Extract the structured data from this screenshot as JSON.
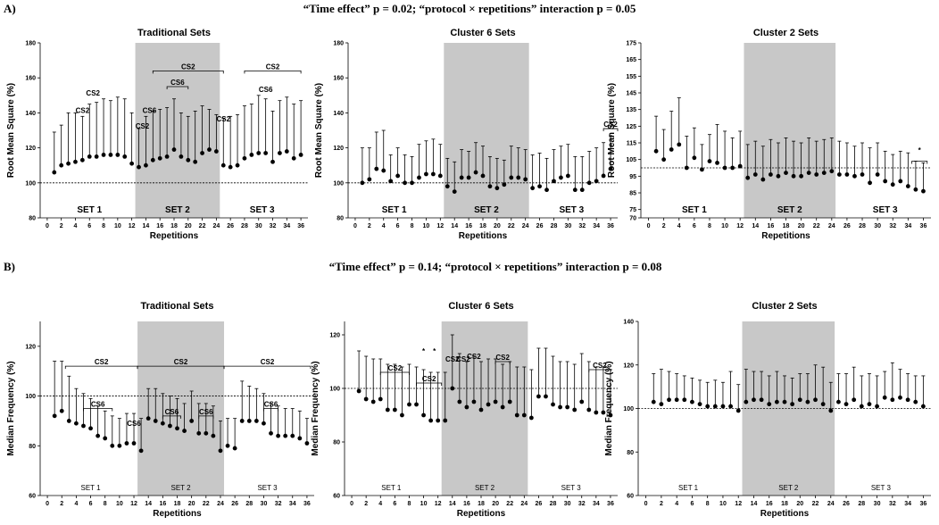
{
  "rows": [
    {
      "label": "A)",
      "header": "“Time effect” p = 0.02; “protocol × repetitions” interaction p = 0.05"
    },
    {
      "label": "B)",
      "header": "“Time effect” p = 0.14; “protocol × repetitions” interaction p = 0.08"
    }
  ],
  "chart_data": [
    {
      "type": "scatter",
      "title": "Traditional Sets",
      "xlabel": "Repetitions",
      "ylabel": "Root Mean Square (%)",
      "xlim": [
        -1,
        37
      ],
      "ylim": [
        80,
        180
      ],
      "xticks": [
        0,
        2,
        4,
        6,
        8,
        10,
        12,
        14,
        16,
        18,
        20,
        22,
        24,
        26,
        28,
        30,
        32,
        34,
        36
      ],
      "yticks": [
        80,
        100,
        120,
        140,
        160,
        180
      ],
      "reference_line": 100,
      "shaded": [
        12.5,
        24.5
      ],
      "set_labels": [
        {
          "text": "SET 1",
          "x": 6
        },
        {
          "text": "SET 2",
          "x": 18.5
        },
        {
          "text": "SET 3",
          "x": 30.5
        }
      ],
      "x": [
        1,
        2,
        3,
        4,
        5,
        6,
        7,
        8,
        9,
        10,
        11,
        12,
        13,
        14,
        15,
        16,
        17,
        18,
        19,
        20,
        21,
        22,
        23,
        24,
        25,
        26,
        27,
        28,
        29,
        30,
        31,
        32,
        33,
        34,
        35,
        36
      ],
      "mean": [
        106,
        110,
        111,
        112,
        113,
        115,
        115,
        116,
        116,
        116,
        115,
        111,
        109,
        110,
        113,
        114,
        115,
        119,
        115,
        113,
        112,
        117,
        119,
        118,
        110,
        109,
        110,
        114,
        116,
        117,
        117,
        112,
        117,
        118,
        114,
        116
      ],
      "upper": [
        129,
        133,
        140,
        140,
        138,
        145,
        146,
        148,
        147,
        149,
        148,
        140,
        131,
        138,
        141,
        142,
        143,
        148,
        140,
        138,
        141,
        144,
        142,
        139,
        137,
        138,
        139,
        144,
        145,
        150,
        148,
        141,
        147,
        149,
        145,
        147
      ],
      "annotations": [
        {
          "text": "CS2",
          "x": 5,
          "y": 140
        },
        {
          "text": "CS2",
          "x": 6.5,
          "y": 150
        },
        {
          "text": "CS2",
          "x": 13.5,
          "y": 131
        },
        {
          "text": "CS6",
          "x": 14.5,
          "y": 140
        },
        {
          "text": "CS2",
          "x": 25,
          "y": 135
        },
        {
          "text": "CS6",
          "x": 31,
          "y": 152
        }
      ],
      "brackets": [
        {
          "text": "CS2",
          "x1": 15,
          "x2": 25,
          "y": 164
        },
        {
          "text": "CS6",
          "x1": 17,
          "x2": 20,
          "y": 155
        },
        {
          "text": "CS2",
          "x1": 28,
          "x2": 36,
          "y": 164
        }
      ]
    },
    {
      "type": "scatter",
      "title": "Cluster 6 Sets",
      "xlabel": "Repetitions",
      "ylabel": "Root Mean Square  (%)",
      "xlim": [
        -1,
        37
      ],
      "ylim": [
        80,
        180
      ],
      "xticks": [
        0,
        2,
        4,
        6,
        8,
        10,
        12,
        14,
        16,
        18,
        20,
        22,
        24,
        26,
        28,
        30,
        32,
        34,
        36
      ],
      "yticks": [
        80,
        100,
        120,
        140,
        160,
        180
      ],
      "reference_line": 100,
      "shaded": [
        12.5,
        24.5
      ],
      "set_labels": [
        {
          "text": "SET 1",
          "x": 5.5
        },
        {
          "text": "SET 2",
          "x": 18.5
        },
        {
          "text": "SET 3",
          "x": 30.5
        }
      ],
      "x": [
        1,
        2,
        3,
        4,
        5,
        6,
        7,
        8,
        9,
        10,
        11,
        12,
        13,
        14,
        15,
        16,
        17,
        18,
        19,
        20,
        21,
        22,
        23,
        24,
        25,
        26,
        27,
        28,
        29,
        30,
        31,
        32,
        33,
        34,
        35,
        36
      ],
      "mean": [
        100,
        102,
        108,
        107,
        101,
        104,
        100,
        100,
        103,
        105,
        105,
        104,
        98,
        95,
        103,
        103,
        106,
        104,
        98,
        97,
        99,
        103,
        103,
        102,
        97,
        98,
        96,
        101,
        103,
        104,
        96,
        96,
        100,
        101,
        104,
        108
      ],
      "upper": [
        120,
        120,
        129,
        130,
        116,
        120,
        116,
        115,
        122,
        124,
        125,
        122,
        114,
        112,
        119,
        118,
        123,
        121,
        115,
        114,
        113,
        121,
        120,
        119,
        116,
        117,
        114,
        119,
        121,
        122,
        115,
        115,
        118,
        120,
        123,
        127
      ],
      "annotations": [],
      "brackets": [
        {
          "text": "CS2",
          "x1": 35,
          "x2": 37,
          "y": 131
        }
      ]
    },
    {
      "type": "scatter",
      "title": "Cluster 2 Sets",
      "xlabel": "Repetitions",
      "ylabel": "Root Mean Square  (%)",
      "xlim": [
        -1,
        37
      ],
      "ylim": [
        70,
        175
      ],
      "xticks": [
        0,
        2,
        4,
        6,
        8,
        10,
        12,
        14,
        16,
        18,
        20,
        22,
        24,
        26,
        28,
        30,
        32,
        34,
        36
      ],
      "yticks": [
        70,
        75,
        85,
        95,
        105,
        115,
        125,
        135,
        145,
        155,
        165,
        175
      ],
      "reference_line": 100,
      "shaded": [
        12.5,
        24.5
      ],
      "set_labels": [
        {
          "text": "SET 1",
          "x": 6
        },
        {
          "text": "SET 2",
          "x": 18.5
        },
        {
          "text": "SET 3",
          "x": 31
        }
      ],
      "x": [
        1,
        2,
        3,
        4,
        5,
        6,
        7,
        8,
        9,
        10,
        11,
        12,
        13,
        14,
        15,
        16,
        17,
        18,
        19,
        20,
        21,
        22,
        23,
        24,
        25,
        26,
        27,
        28,
        29,
        30,
        31,
        32,
        33,
        34,
        35,
        36
      ],
      "mean": [
        110,
        105,
        111,
        114,
        100,
        106,
        99,
        104,
        103,
        100,
        100,
        101,
        94,
        96,
        93,
        96,
        95,
        97,
        95,
        95,
        97,
        96,
        97,
        98,
        96,
        96,
        95,
        96,
        91,
        96,
        92,
        90,
        92,
        89,
        87,
        86
      ],
      "upper": [
        131,
        123,
        134,
        142,
        119,
        124,
        114,
        120,
        126,
        122,
        118,
        122,
        114,
        116,
        113,
        117,
        115,
        118,
        116,
        115,
        118,
        116,
        117,
        118,
        116,
        115,
        113,
        115,
        112,
        115,
        110,
        108,
        110,
        109,
        104,
        103
      ],
      "annotations": [
        {
          "text": "*",
          "x": 35.5,
          "y": 109
        }
      ],
      "brackets": [
        {
          "text": "",
          "x1": 34.5,
          "x2": 36.5,
          "y": 104
        }
      ]
    },
    {
      "type": "scatter",
      "title": "Traditional Sets",
      "xlabel": "Repetitions",
      "ylabel": "Median Frequency  (%)",
      "xlim": [
        -1,
        37
      ],
      "ylim": [
        60,
        130
      ],
      "xticks": [
        0,
        2,
        4,
        6,
        8,
        10,
        12,
        14,
        16,
        18,
        20,
        22,
        24,
        26,
        28,
        30,
        32,
        34,
        36
      ],
      "yticks": [
        60,
        80,
        100,
        120
      ],
      "reference_line": 100,
      "shaded": [
        12.5,
        24.5
      ],
      "set_labels": [
        {
          "text": "SET 1",
          "x": 6
        },
        {
          "text": "SET 2",
          "x": 18.5
        },
        {
          "text": "SET 3",
          "x": 30.5
        }
      ],
      "x": [
        1,
        2,
        3,
        4,
        5,
        6,
        7,
        8,
        9,
        10,
        11,
        12,
        13,
        14,
        15,
        16,
        17,
        18,
        19,
        20,
        21,
        22,
        23,
        24,
        25,
        26,
        27,
        28,
        29,
        30,
        31,
        32,
        33,
        34,
        35,
        36
      ],
      "mean": [
        92,
        94,
        90,
        89,
        88,
        87,
        84,
        83,
        80,
        80,
        81,
        81,
        78,
        91,
        90,
        89,
        88,
        87,
        86,
        90,
        85,
        85,
        84,
        78,
        80,
        79,
        90,
        90,
        90,
        89,
        85,
        84,
        84,
        84,
        83,
        81
      ],
      "upper": [
        114,
        114,
        108,
        103,
        101,
        99,
        96,
        94,
        92,
        91,
        93,
        93,
        91,
        103,
        103,
        101,
        100,
        99,
        97,
        102,
        97,
        97,
        96,
        90,
        91,
        91,
        106,
        104,
        103,
        101,
        97,
        96,
        95,
        95,
        94,
        91
      ],
      "annotations": [
        {
          "text": "CS6",
          "x": 12,
          "y": 88
        }
      ],
      "brackets": [
        {
          "text": "CS2",
          "x1": 2.5,
          "x2": 12.5,
          "y": 112
        },
        {
          "text": "CS6",
          "x1": 5,
          "x2": 9,
          "y": 95
        },
        {
          "text": "CS2",
          "x1": 12.5,
          "x2": 24.5,
          "y": 112
        },
        {
          "text": "CS6",
          "x1": 16,
          "x2": 18.5,
          "y": 92
        },
        {
          "text": "CS6",
          "x1": 21,
          "x2": 23,
          "y": 92
        },
        {
          "text": "CS2",
          "x1": 24.5,
          "x2": 36.5,
          "y": 112
        },
        {
          "text": "CS6",
          "x1": 30,
          "x2": 32,
          "y": 95
        }
      ]
    },
    {
      "type": "scatter",
      "title": "Cluster 6 Sets",
      "xlabel": "Repetitions",
      "ylabel": "Median Frequency  (%)",
      "xlim": [
        -1,
        37
      ],
      "ylim": [
        60,
        125
      ],
      "xticks": [
        0,
        2,
        4,
        6,
        8,
        10,
        12,
        14,
        16,
        18,
        20,
        22,
        24,
        26,
        28,
        30,
        32,
        34,
        36
      ],
      "yticks": [
        60,
        80,
        100,
        120
      ],
      "reference_line": 100,
      "shaded": [
        12.5,
        24.5
      ],
      "set_labels": [
        {
          "text": "SET 1",
          "x": 5.5
        },
        {
          "text": "SET 2",
          "x": 18.5
        },
        {
          "text": "SET 3",
          "x": 30.5
        }
      ],
      "x": [
        1,
        2,
        3,
        4,
        5,
        6,
        7,
        8,
        9,
        10,
        11,
        12,
        13,
        14,
        15,
        16,
        17,
        18,
        19,
        20,
        21,
        22,
        23,
        24,
        25,
        26,
        27,
        28,
        29,
        30,
        31,
        32,
        33,
        34,
        35,
        36
      ],
      "mean": [
        99,
        96,
        95,
        96,
        92,
        92,
        90,
        94,
        94,
        90,
        88,
        88,
        88,
        100,
        95,
        93,
        95,
        92,
        94,
        95,
        93,
        95,
        90,
        90,
        89,
        97,
        97,
        94,
        93,
        93,
        92,
        95,
        92,
        91,
        91,
        90
      ],
      "upper": [
        114,
        112,
        111,
        111,
        109,
        109,
        108,
        109,
        108,
        107,
        106,
        106,
        106,
        120,
        113,
        110,
        112,
        110,
        111,
        111,
        109,
        110,
        108,
        108,
        107,
        115,
        115,
        112,
        110,
        110,
        109,
        113,
        110,
        108,
        108,
        107
      ],
      "annotations": [
        {
          "text": "*",
          "x": 10,
          "y": 113
        },
        {
          "text": "*",
          "x": 11.5,
          "y": 113
        },
        {
          "text": "CS2",
          "x": 14,
          "y": 110
        },
        {
          "text": "CS2",
          "x": 15.5,
          "y": 110
        },
        {
          "text": "CS2",
          "x": 17,
          "y": 111
        }
      ],
      "brackets": [
        {
          "text": "CS2",
          "x1": 4,
          "x2": 8,
          "y": 106
        },
        {
          "text": "CS2",
          "x1": 9,
          "x2": 12.5,
          "y": 102
        },
        {
          "text": "CS2",
          "x1": 20,
          "x2": 22,
          "y": 110
        },
        {
          "text": "CS2",
          "x1": 33,
          "x2": 36,
          "y": 107
        }
      ]
    },
    {
      "type": "scatter",
      "title": "Cluster 2 Sets",
      "xlabel": "Repetitions",
      "ylabel": "Median Frequency  (%)",
      "xlim": [
        -1,
        37
      ],
      "ylim": [
        60,
        140
      ],
      "xticks": [
        0,
        2,
        4,
        6,
        8,
        10,
        12,
        14,
        16,
        18,
        20,
        22,
        24,
        26,
        28,
        30,
        32,
        34,
        36
      ],
      "yticks": [
        60,
        80,
        100,
        120,
        140
      ],
      "reference_line": 100,
      "shaded": [
        12.5,
        24.5
      ],
      "set_labels": [
        {
          "text": "SET 1",
          "x": 5.5
        },
        {
          "text": "SET 2",
          "x": 18.5
        },
        {
          "text": "SET 3",
          "x": 30.5
        }
      ],
      "x": [
        1,
        2,
        3,
        4,
        5,
        6,
        7,
        8,
        9,
        10,
        11,
        12,
        13,
        14,
        15,
        16,
        17,
        18,
        19,
        20,
        21,
        22,
        23,
        24,
        25,
        26,
        27,
        28,
        29,
        30,
        31,
        32,
        33,
        34,
        35,
        36
      ],
      "mean": [
        103,
        102,
        104,
        104,
        104,
        103,
        102,
        101,
        101,
        101,
        101,
        99,
        103,
        104,
        104,
        102,
        103,
        103,
        102,
        104,
        103,
        104,
        102,
        99,
        103,
        102,
        104,
        101,
        102,
        101,
        105,
        104,
        105,
        104,
        103,
        101
      ],
      "upper": [
        116,
        118,
        117,
        116,
        115,
        114,
        113,
        112,
        113,
        112,
        117,
        111,
        118,
        117,
        117,
        115,
        117,
        115,
        114,
        116,
        116,
        120,
        119,
        112,
        116,
        116,
        119,
        115,
        116,
        115,
        117,
        121,
        118,
        116,
        115,
        115
      ],
      "annotations": [],
      "brackets": []
    }
  ]
}
